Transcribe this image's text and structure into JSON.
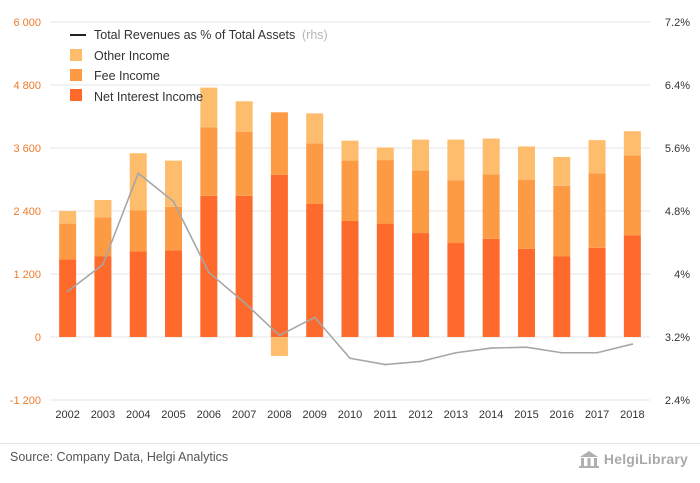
{
  "source": "Source: Company Data, Helgi Analytics",
  "logo_text": "HelgiLibrary",
  "colors": {
    "net_interest": "#fd6a2c",
    "fee": "#fd9b44",
    "other": "#fdbd6c",
    "line": "#a7a7a7",
    "line_legend": "#222222",
    "grid": "#e6e6e6"
  },
  "chart_data": {
    "type": "bar",
    "stacked": true,
    "categories": [
      "2002",
      "2003",
      "2004",
      "2005",
      "2006",
      "2007",
      "2008",
      "2009",
      "2010",
      "2011",
      "2012",
      "2013",
      "2014",
      "2015",
      "2016",
      "2017",
      "2018"
    ],
    "series": [
      {
        "name": "Net Interest Income",
        "values": [
          1480,
          1540,
          1630,
          1650,
          2690,
          2690,
          3090,
          2540,
          2210,
          2160,
          1980,
          1790,
          1870,
          1680,
          1540,
          1700,
          1940
        ]
      },
      {
        "name": "Fee Income",
        "values": [
          680,
          740,
          780,
          830,
          1300,
          1220,
          1190,
          1150,
          1150,
          1210,
          1190,
          1190,
          1230,
          1310,
          1340,
          1420,
          1520
        ]
      },
      {
        "name": "Other Income",
        "values": [
          240,
          330,
          1090,
          880,
          760,
          580,
          -360,
          570,
          380,
          240,
          590,
          780,
          680,
          640,
          550,
          630,
          460
        ]
      }
    ],
    "line_series": {
      "name": "Total Revenues as % of Total Assets",
      "axis_note": "(rhs)",
      "values": [
        3.78,
        4.12,
        5.28,
        4.92,
        4.02,
        3.64,
        3.22,
        3.45,
        2.93,
        2.85,
        2.89,
        3.0,
        3.06,
        3.07,
        3.0,
        3.0,
        3.11
      ]
    },
    "y_left": {
      "min": -1200,
      "max": 6000,
      "ticks": [
        "-1 200",
        "0",
        "1 200",
        "2 400",
        "3 600",
        "4 800",
        "6 000"
      ]
    },
    "y_right": {
      "min": 2.4,
      "max": 7.2,
      "ticks": [
        "2.4%",
        "3.2%",
        "4%",
        "4.8%",
        "5.6%",
        "6.4%",
        "7.2%"
      ]
    },
    "grid": true,
    "legend_position": "top-left"
  }
}
